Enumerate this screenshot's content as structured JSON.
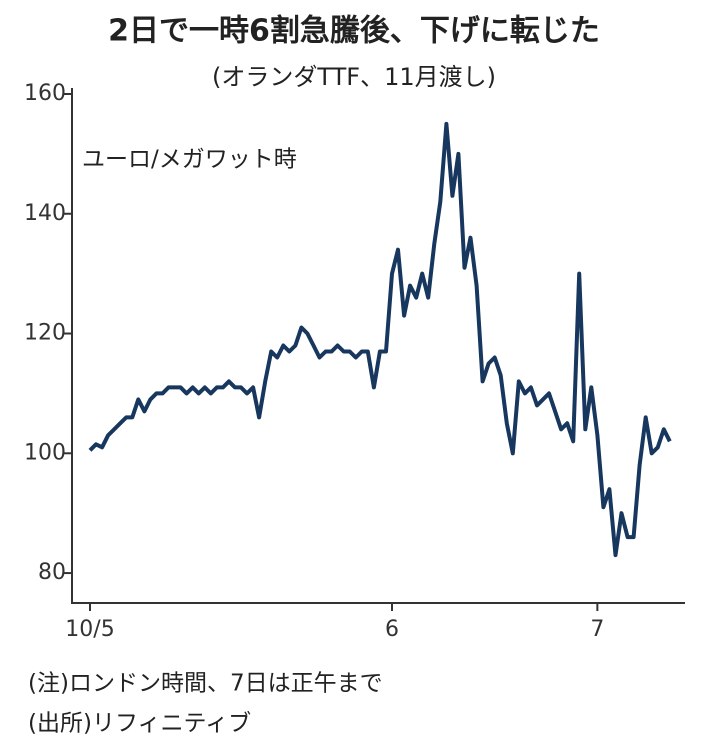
{
  "chart_data": {
    "type": "line",
    "title": "2日で一時6割急騰後、下げに転じた",
    "subtitle": "(オランダTTF、11月渡し)",
    "y_label": "ユーロ/メガワット時",
    "notes": [
      "(注)ロンドン時間、7日は正午まで",
      "(出所)リフィニティブ"
    ],
    "categories": [
      "10/5",
      null,
      null,
      null,
      null,
      null,
      null,
      null,
      null,
      null,
      null,
      null,
      null,
      null,
      null,
      null,
      null,
      null,
      null,
      null,
      null,
      null,
      null,
      null,
      null,
      null,
      null,
      null,
      null,
      null,
      null,
      null,
      null,
      null,
      null,
      null,
      null,
      null,
      null,
      null,
      null,
      null,
      null,
      null,
      null,
      null,
      null,
      null,
      null,
      null,
      "6",
      null,
      null,
      null,
      null,
      null,
      null,
      null,
      null,
      null,
      null,
      null,
      null,
      null,
      null,
      null,
      null,
      null,
      null,
      null,
      null,
      null,
      null,
      null,
      null,
      null,
      null,
      null,
      null,
      null,
      null,
      null,
      null,
      null,
      "7",
      null,
      null,
      null,
      null,
      null,
      null,
      null,
      null,
      null,
      null,
      null,
      null
    ],
    "values": [
      100.5,
      101.5,
      101,
      103,
      104,
      105,
      106,
      106,
      109,
      107,
      109,
      110,
      110,
      111,
      111,
      111,
      110,
      111,
      110,
      111,
      110,
      111,
      111,
      112,
      111,
      111,
      110,
      111,
      106,
      112,
      117,
      116,
      118,
      117,
      118,
      121,
      120,
      118,
      116,
      117,
      117,
      118,
      117,
      117,
      116,
      117,
      117,
      111,
      117,
      117,
      130,
      134,
      123,
      128,
      126,
      130,
      126,
      135,
      142,
      155,
      143,
      150,
      131,
      136,
      128,
      112,
      115,
      116,
      113,
      105,
      100,
      112,
      110,
      111,
      108,
      109,
      110,
      107,
      104,
      105,
      102,
      130,
      104,
      111,
      103,
      91,
      94,
      83,
      90,
      86,
      86,
      98,
      106,
      100,
      101,
      104,
      102
    ],
    "color": "#17375e",
    "ylim": [
      75,
      161
    ],
    "yticks": [
      80,
      100,
      120,
      140,
      160
    ]
  }
}
